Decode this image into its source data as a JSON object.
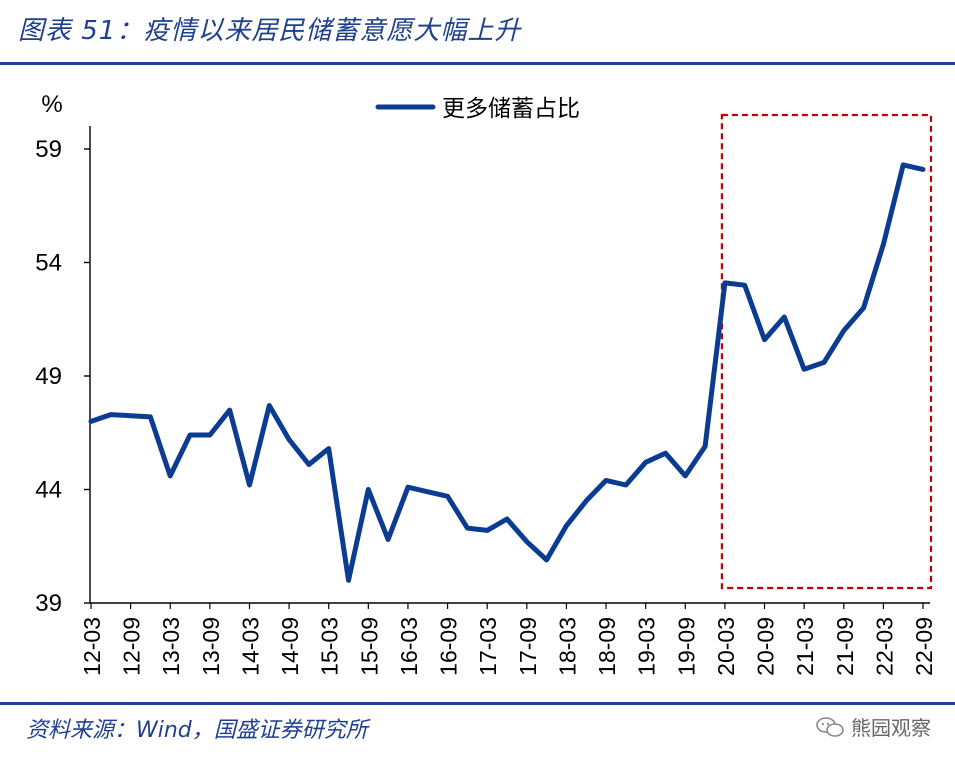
{
  "header": {
    "title": "图表 51：疫情以来居民储蓄意愿大幅上升"
  },
  "footer": {
    "source": "资料来源：Wind，国盛证券研究所",
    "watermark": "熊园观察"
  },
  "colors": {
    "series": "#0b3c91",
    "highlight_box": "#c00000",
    "brand": "#1f3f8f"
  },
  "chart_data": {
    "type": "line",
    "title": "",
    "xlabel": "",
    "ylabel": "%",
    "ylim": [
      39,
      60
    ],
    "yticks": [
      39,
      44,
      49,
      54,
      59
    ],
    "legend": "top-center",
    "x_tick_labels": [
      "12-03",
      "12-09",
      "13-03",
      "13-09",
      "14-03",
      "14-09",
      "15-03",
      "15-09",
      "16-03",
      "16-09",
      "17-03",
      "17-09",
      "18-03",
      "18-09",
      "19-03",
      "19-09",
      "20-03",
      "20-09",
      "21-03",
      "21-09",
      "22-03",
      "22-09"
    ],
    "highlight_range": [
      "20-03",
      "22-09"
    ],
    "series": [
      {
        "name": "更多储蓄占比",
        "x": [
          "12-03",
          "12-06",
          "12-09",
          "12-12",
          "13-03",
          "13-06",
          "13-09",
          "13-12",
          "14-03",
          "14-06",
          "14-09",
          "14-12",
          "15-03",
          "15-06",
          "15-09",
          "15-12",
          "16-03",
          "16-06",
          "16-09",
          "16-12",
          "17-03",
          "17-06",
          "17-09",
          "17-12",
          "18-03",
          "18-06",
          "18-09",
          "18-12",
          "19-03",
          "19-06",
          "19-09",
          "19-12",
          "20-03",
          "20-06",
          "20-09",
          "20-12",
          "21-03",
          "21-06",
          "21-09",
          "21-12",
          "22-03",
          "22-06",
          "22-09"
        ],
        "values": [
          47.0,
          47.3,
          47.25,
          47.2,
          44.6,
          46.4,
          46.4,
          47.5,
          44.2,
          47.7,
          46.2,
          45.1,
          45.8,
          40.0,
          44.0,
          41.8,
          44.1,
          43.9,
          43.7,
          42.3,
          42.2,
          42.7,
          41.7,
          40.9,
          42.4,
          43.5,
          44.4,
          44.2,
          45.2,
          45.6,
          44.6,
          45.9,
          53.1,
          53.0,
          50.6,
          51.6,
          49.3,
          49.6,
          51.0,
          52.0,
          54.8,
          58.3,
          58.1
        ]
      }
    ]
  }
}
